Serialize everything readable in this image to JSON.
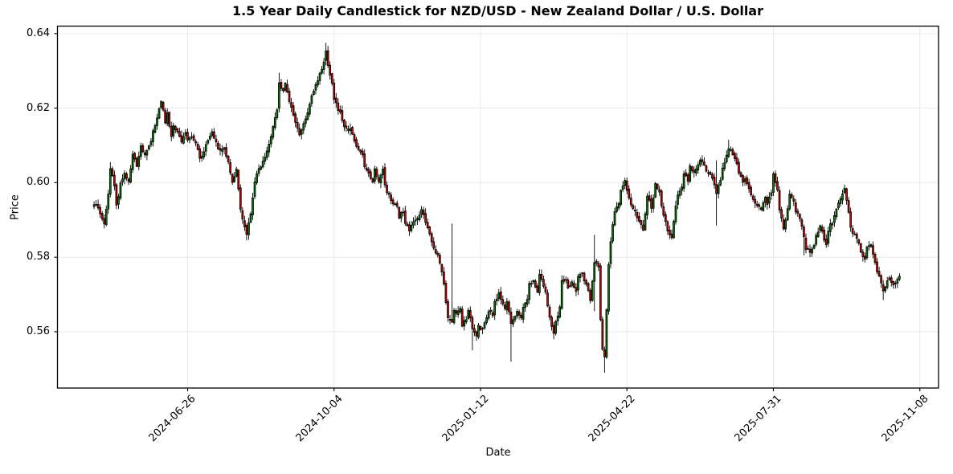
{
  "figure": {
    "title": "1.5 Year Daily Candlestick for NZD/USD - New Zealand Dollar / U.S. Dollar"
  },
  "chart_data": {
    "type": "candlestick",
    "title": "1.5 Year Daily Candlestick for NZD/USD - New Zealand Dollar / U.S. Dollar",
    "xlabel": "Date",
    "ylabel": "Price",
    "grid": true,
    "legend": "none",
    "ylim": [
      0.5449,
      0.642
    ],
    "xlim_bars": [
      -18,
      415.2
    ],
    "n_bars": 397,
    "y_ticks": [
      {
        "label": "0.56",
        "value": 0.56
      },
      {
        "label": "0.58",
        "value": 0.58
      },
      {
        "label": "0.60",
        "value": 0.6
      },
      {
        "label": "0.62",
        "value": 0.62
      },
      {
        "label": "0.64",
        "value": 0.64
      }
    ],
    "x_ticks": [
      {
        "label": "2024-06-26",
        "bar": 46
      },
      {
        "label": "2024-10-04",
        "bar": 118
      },
      {
        "label": "2025-01-12",
        "bar": 190
      },
      {
        "label": "2025-04-22",
        "bar": 262
      },
      {
        "label": "2025-07-31",
        "bar": 334
      },
      {
        "label": "2025-11-08",
        "bar": 406
      }
    ],
    "colors": {
      "up": "#008000",
      "down": "#dd0000",
      "wick": "#000000",
      "edge": "#000000",
      "grid": "#e7e7e7",
      "spine": "#000000",
      "background": "#ffffff"
    },
    "anchors": [
      [
        0,
        0.5945
      ],
      [
        2,
        0.5935
      ],
      [
        4,
        0.5905
      ],
      [
        5,
        0.5885
      ],
      [
        7,
        0.597
      ],
      [
        8,
        0.6035
      ],
      [
        10,
        0.5995
      ],
      [
        11,
        0.5935
      ],
      [
        13,
        0.5995
      ],
      [
        15,
        0.6025
      ],
      [
        17,
        0.6
      ],
      [
        19,
        0.6075
      ],
      [
        21,
        0.6045
      ],
      [
        23,
        0.6095
      ],
      [
        25,
        0.6075
      ],
      [
        28,
        0.6115
      ],
      [
        30,
        0.6155
      ],
      [
        32,
        0.6195
      ],
      [
        33,
        0.6215
      ],
      [
        35,
        0.6165
      ],
      [
        36,
        0.6185
      ],
      [
        38,
        0.6125
      ],
      [
        39,
        0.6155
      ],
      [
        41,
        0.6135
      ],
      [
        43,
        0.6105
      ],
      [
        45,
        0.6135
      ],
      [
        46,
        0.6115
      ],
      [
        48,
        0.6125
      ],
      [
        50,
        0.6105
      ],
      [
        52,
        0.6065
      ],
      [
        54,
        0.6085
      ],
      [
        56,
        0.6115
      ],
      [
        58,
        0.6135
      ],
      [
        60,
        0.6105
      ],
      [
        62,
        0.6085
      ],
      [
        64,
        0.6095
      ],
      [
        66,
        0.6055
      ],
      [
        68,
        0.6005
      ],
      [
        70,
        0.6035
      ],
      [
        71,
        0.5985
      ],
      [
        72,
        0.5925
      ],
      [
        74,
        0.5885
      ],
      [
        75,
        0.5865
      ],
      [
        77,
        0.592
      ],
      [
        79,
        0.6005
      ],
      [
        81,
        0.6035
      ],
      [
        83,
        0.6055
      ],
      [
        85,
        0.6085
      ],
      [
        87,
        0.6125
      ],
      [
        88,
        0.6155
      ],
      [
        90,
        0.6195
      ],
      [
        91,
        0.6265
      ],
      [
        93,
        0.6245
      ],
      [
        94,
        0.627
      ],
      [
        96,
        0.6215
      ],
      [
        98,
        0.6185
      ],
      [
        99,
        0.6165
      ],
      [
        101,
        0.6125
      ],
      [
        102,
        0.6145
      ],
      [
        104,
        0.617
      ],
      [
        106,
        0.6215
      ],
      [
        107,
        0.6235
      ],
      [
        109,
        0.626
      ],
      [
        111,
        0.629
      ],
      [
        113,
        0.6325
      ],
      [
        114,
        0.6355
      ],
      [
        115,
        0.631
      ],
      [
        117,
        0.6265
      ],
      [
        118,
        0.6225
      ],
      [
        120,
        0.6195
      ],
      [
        121,
        0.6185
      ],
      [
        123,
        0.6155
      ],
      [
        125,
        0.6135
      ],
      [
        126,
        0.6145
      ],
      [
        128,
        0.611
      ],
      [
        130,
        0.6085
      ],
      [
        132,
        0.607
      ],
      [
        133,
        0.6045
      ],
      [
        135,
        0.6025
      ],
      [
        137,
        0.6
      ],
      [
        138,
        0.6035
      ],
      [
        140,
        0.6
      ],
      [
        142,
        0.6035
      ],
      [
        143,
        0.599
      ],
      [
        145,
        0.5965
      ],
      [
        147,
        0.5945
      ],
      [
        149,
        0.5935
      ],
      [
        150,
        0.591
      ],
      [
        152,
        0.5925
      ],
      [
        153,
        0.589
      ],
      [
        155,
        0.5875
      ],
      [
        157,
        0.59
      ],
      [
        159,
        0.5905
      ],
      [
        161,
        0.5925
      ],
      [
        164,
        0.588
      ],
      [
        166,
        0.5845
      ],
      [
        167,
        0.5825
      ],
      [
        169,
        0.5805
      ],
      [
        171,
        0.5765
      ],
      [
        172,
        0.573
      ],
      [
        173,
        0.5675
      ],
      [
        174,
        0.5635
      ],
      [
        176,
        0.5625
      ],
      [
        177,
        0.5655
      ],
      [
        178,
        0.5645
      ],
      [
        180,
        0.5665
      ],
      [
        181,
        0.5615
      ],
      [
        183,
        0.5635
      ],
      [
        184,
        0.566
      ],
      [
        186,
        0.561
      ],
      [
        188,
        0.5585
      ],
      [
        189,
        0.5615
      ],
      [
        191,
        0.5605
      ],
      [
        192,
        0.5625
      ],
      [
        194,
        0.5655
      ],
      [
        196,
        0.5645
      ],
      [
        197,
        0.568
      ],
      [
        199,
        0.5705
      ],
      [
        200,
        0.5685
      ],
      [
        202,
        0.5665
      ],
      [
        203,
        0.5685
      ],
      [
        205,
        0.5625
      ],
      [
        207,
        0.5645
      ],
      [
        208,
        0.5655
      ],
      [
        210,
        0.5635
      ],
      [
        211,
        0.5665
      ],
      [
        213,
        0.569
      ],
      [
        214,
        0.5725
      ],
      [
        216,
        0.5735
      ],
      [
        218,
        0.571
      ],
      [
        219,
        0.5755
      ],
      [
        221,
        0.5725
      ],
      [
        222,
        0.5705
      ],
      [
        224,
        0.5635
      ],
      [
        226,
        0.5595
      ],
      [
        227,
        0.5625
      ],
      [
        229,
        0.5665
      ],
      [
        230,
        0.5735
      ],
      [
        232,
        0.5745
      ],
      [
        233,
        0.5715
      ],
      [
        235,
        0.5735
      ],
      [
        237,
        0.5705
      ],
      [
        238,
        0.5745
      ],
      [
        240,
        0.5755
      ],
      [
        241,
        0.5735
      ],
      [
        243,
        0.5715
      ],
      [
        244,
        0.568
      ],
      [
        246,
        0.5785
      ],
      [
        248,
        0.5775
      ],
      [
        249,
        0.5635
      ],
      [
        250,
        0.5555
      ],
      [
        251,
        0.5535
      ],
      [
        252,
        0.5655
      ],
      [
        253,
        0.578
      ],
      [
        254,
        0.584
      ],
      [
        255,
        0.589
      ],
      [
        256,
        0.592
      ],
      [
        258,
        0.5945
      ],
      [
        259,
        0.598
      ],
      [
        261,
        0.6005
      ],
      [
        262,
        0.5975
      ],
      [
        264,
        0.5945
      ],
      [
        265,
        0.5935
      ],
      [
        267,
        0.5905
      ],
      [
        268,
        0.5895
      ],
      [
        270,
        0.5875
      ],
      [
        272,
        0.5965
      ],
      [
        274,
        0.5935
      ],
      [
        275,
        0.5955
      ],
      [
        276,
        0.5995
      ],
      [
        278,
        0.5975
      ],
      [
        279,
        0.5935
      ],
      [
        281,
        0.5895
      ],
      [
        282,
        0.5875
      ],
      [
        284,
        0.5855
      ],
      [
        286,
        0.5935
      ],
      [
        287,
        0.5965
      ],
      [
        289,
        0.5985
      ],
      [
        290,
        0.6025
      ],
      [
        292,
        0.6005
      ],
      [
        293,
        0.6045
      ],
      [
        295,
        0.6025
      ],
      [
        297,
        0.6045
      ],
      [
        298,
        0.6065
      ],
      [
        300,
        0.6045
      ],
      [
        301,
        0.6035
      ],
      [
        303,
        0.6025
      ],
      [
        304,
        0.6015
      ],
      [
        306,
        0.5975
      ],
      [
        308,
        0.6005
      ],
      [
        309,
        0.6035
      ],
      [
        311,
        0.6075
      ],
      [
        312,
        0.6095
      ],
      [
        314,
        0.6075
      ],
      [
        316,
        0.6055
      ],
      [
        317,
        0.6025
      ],
      [
        319,
        0.6005
      ],
      [
        320,
        0.6015
      ],
      [
        322,
        0.5985
      ],
      [
        323,
        0.5965
      ],
      [
        325,
        0.5945
      ],
      [
        327,
        0.5935
      ],
      [
        328,
        0.5925
      ],
      [
        330,
        0.5965
      ],
      [
        331,
        0.5945
      ],
      [
        333,
        0.597
      ],
      [
        334,
        0.602
      ],
      [
        336,
        0.5985
      ],
      [
        337,
        0.593
      ],
      [
        339,
        0.5875
      ],
      [
        340,
        0.5895
      ],
      [
        342,
        0.5965
      ],
      [
        344,
        0.5945
      ],
      [
        345,
        0.5925
      ],
      [
        347,
        0.5905
      ],
      [
        349,
        0.5855
      ],
      [
        350,
        0.5825
      ],
      [
        352,
        0.5815
      ],
      [
        354,
        0.583
      ],
      [
        355,
        0.5855
      ],
      [
        357,
        0.5885
      ],
      [
        358,
        0.5865
      ],
      [
        360,
        0.5835
      ],
      [
        361,
        0.5875
      ],
      [
        363,
        0.5895
      ],
      [
        365,
        0.5925
      ],
      [
        366,
        0.5945
      ],
      [
        368,
        0.5965
      ],
      [
        369,
        0.5985
      ],
      [
        371,
        0.5925
      ],
      [
        372,
        0.5875
      ],
      [
        374,
        0.586
      ],
      [
        376,
        0.5835
      ],
      [
        377,
        0.5815
      ],
      [
        379,
        0.5795
      ],
      [
        380,
        0.5825
      ],
      [
        382,
        0.5835
      ],
      [
        383,
        0.5805
      ],
      [
        385,
        0.5765
      ],
      [
        387,
        0.5735
      ],
      [
        388,
        0.5705
      ],
      [
        390,
        0.5735
      ],
      [
        391,
        0.5745
      ],
      [
        393,
        0.5725
      ],
      [
        395,
        0.5745
      ],
      [
        396,
        0.575
      ]
    ],
    "wick_overrides": [
      {
        "i": 8,
        "h": 0.6055
      },
      {
        "i": 33,
        "h": 0.622
      },
      {
        "i": 75,
        "l": 0.5845
      },
      {
        "i": 91,
        "h": 0.6295
      },
      {
        "i": 114,
        "h": 0.6375
      },
      {
        "i": 176,
        "h": 0.589,
        "l": 0.565
      },
      {
        "i": 186,
        "l": 0.555
      },
      {
        "i": 205,
        "l": 0.552
      },
      {
        "i": 226,
        "l": 0.558
      },
      {
        "i": 246,
        "h": 0.586,
        "l": 0.5655
      },
      {
        "i": 251,
        "l": 0.549
      },
      {
        "i": 306,
        "h": 0.606,
        "l": 0.5885
      },
      {
        "i": 312,
        "h": 0.6115
      },
      {
        "i": 349,
        "l": 0.5805
      },
      {
        "i": 369,
        "h": 0.5995
      },
      {
        "i": 388,
        "l": 0.5685
      }
    ]
  }
}
